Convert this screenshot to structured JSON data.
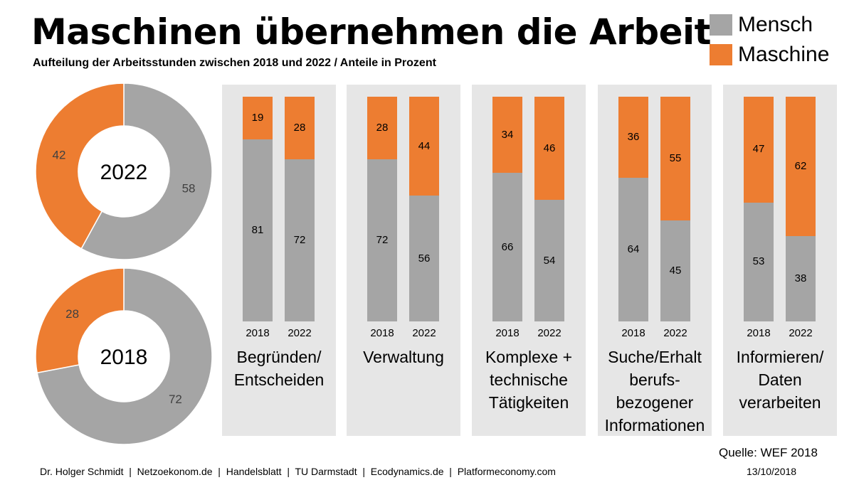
{
  "header": {
    "title": "Maschinen übernehmen die Arbeit",
    "subtitle": "Aufteilung der Arbeitsstunden zwischen 2018 und 2022 / Anteile in Prozent"
  },
  "legend": [
    {
      "label": "Mensch",
      "color": "#a5a5a5"
    },
    {
      "label": "Maschine",
      "color": "#ed7d31"
    }
  ],
  "colors": {
    "mensch": "#a5a5a5",
    "maschine": "#ed7d31",
    "panel": "#e6e6e6"
  },
  "chart_data": [
    {
      "type": "pie",
      "center_label": "2022",
      "slices": [
        {
          "name": "Mensch",
          "value": 58
        },
        {
          "name": "Maschine",
          "value": 42
        }
      ]
    },
    {
      "type": "pie",
      "center_label": "2018",
      "slices": [
        {
          "name": "Mensch",
          "value": 72
        },
        {
          "name": "Maschine",
          "value": 28
        }
      ]
    },
    {
      "type": "bar",
      "stacked": true,
      "groups": [
        {
          "category": "Begründen/\nEntscheiden",
          "years": [
            "2018",
            "2022"
          ],
          "mensch": [
            81,
            72
          ],
          "maschine": [
            19,
            28
          ]
        },
        {
          "category": "Verwaltung",
          "years": [
            "2018",
            "2022"
          ],
          "mensch": [
            72,
            56
          ],
          "maschine": [
            28,
            44
          ]
        },
        {
          "category": "Komplexe +\ntechnische\nTätigkeiten",
          "years": [
            "2018",
            "2022"
          ],
          "mensch": [
            66,
            54
          ],
          "maschine": [
            34,
            46
          ]
        },
        {
          "category": "Suche/Erhalt\nberufs-\nbezogener\nInformationen",
          "years": [
            "2018",
            "2022"
          ],
          "mensch": [
            64,
            45
          ],
          "maschine": [
            36,
            55
          ]
        },
        {
          "category": "Informieren/\nDaten\nverarbeiten",
          "years": [
            "2018",
            "2022"
          ],
          "mensch": [
            53,
            38
          ],
          "maschine": [
            47,
            62
          ]
        }
      ],
      "ylim": [
        0,
        100
      ]
    }
  ],
  "footer": {
    "source": "Quelle: WEF 2018",
    "credits": "Dr. Holger Schmidt  |  Netzoekonom.de  |  Handelsblatt  |  TU Darmstadt  |  Ecodynamics.de  |  Platformeconomy.com",
    "date": "13/10/2018"
  }
}
